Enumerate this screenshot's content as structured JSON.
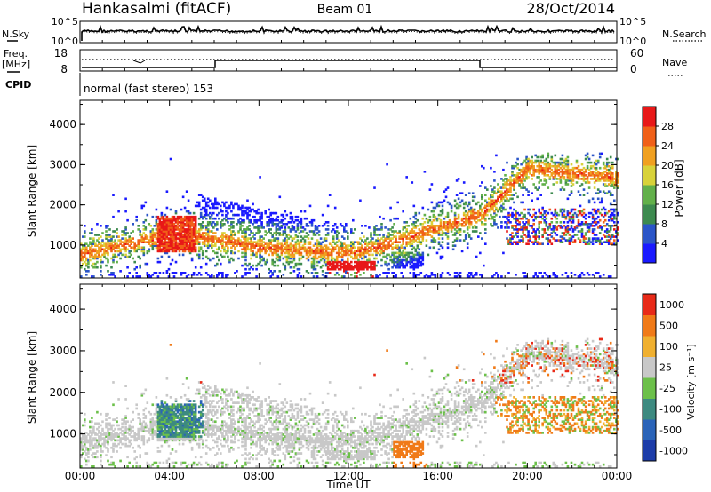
{
  "header": {
    "station": "Hankasalmi (fitACF)",
    "beam": "Beam 01",
    "date": "28/Oct/2014"
  },
  "status_panels": {
    "nsky_label": "N.Sky",
    "nsky_ticks": [
      "10^5",
      "10^0"
    ],
    "nsearch_label": "N.Search",
    "nsearch_ticks": [
      "10^5",
      "10^0"
    ],
    "freq_label": "Freq.",
    "freq_unit": "[MHz]",
    "freq_ticks": [
      "18",
      "8"
    ],
    "nave_label": "Nave",
    "nave_ticks": [
      "60",
      "0"
    ],
    "cpid_label": "CPID",
    "cpid_text": "normal (fast stereo) 153"
  },
  "chart_data": [
    {
      "type": "heatmap",
      "panel": "power",
      "ylabel": "Slant Range [km]",
      "xlabel": "",
      "y_ticks": [
        "4000",
        "3000",
        "2000",
        "1000"
      ],
      "ylim": [
        180,
        4600
      ],
      "xlim": [
        0,
        24
      ],
      "colorbar_label": "Power [dB]",
      "colorbar_ticks": [
        "28",
        "24",
        "20",
        "16",
        "12",
        "8",
        "4"
      ],
      "colorbar_colors": [
        "#1a1aff",
        "#2b55c8",
        "#3d8a4f",
        "#62b04a",
        "#d8d23a",
        "#f0a020",
        "#f06018",
        "#e81818"
      ]
    },
    {
      "type": "heatmap",
      "panel": "velocity",
      "ylabel": "Slant Range [km]",
      "xlabel": "Time UT",
      "x_ticks": [
        "00:00",
        "04:00",
        "08:00",
        "12:00",
        "16:00",
        "20:00",
        "00:00"
      ],
      "y_ticks": [
        "4000",
        "3000",
        "2000",
        "1000"
      ],
      "ylim": [
        180,
        4600
      ],
      "xlim": [
        0,
        24
      ],
      "colorbar_label": "Velocity [m s⁻¹]",
      "colorbar_ticks": [
        "1000",
        "500",
        "100",
        "25",
        "-25",
        "-100",
        "-500",
        "-1000"
      ],
      "colorbar_colors": [
        "#1c3ca8",
        "#2a63b8",
        "#3d8a80",
        "#6cc04a",
        "#c8c8c8",
        "#f0b030",
        "#f07a18",
        "#e82a18"
      ]
    }
  ]
}
